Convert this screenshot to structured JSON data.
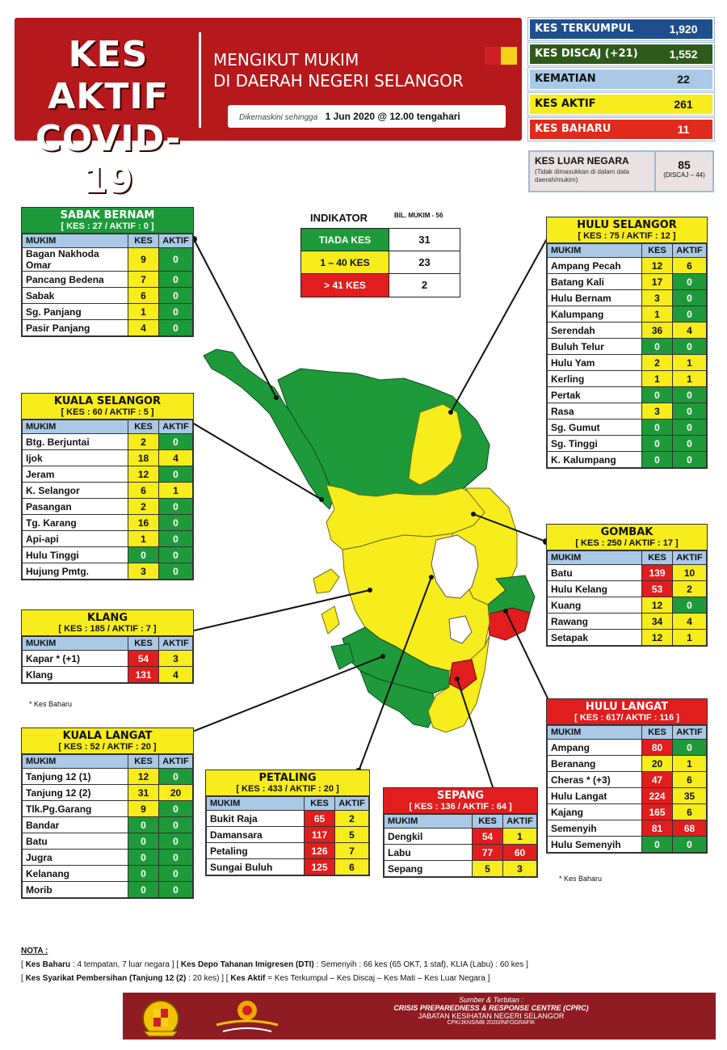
{
  "header": {
    "title_line1": "KES AKTIF",
    "title_line2": "COVID-19",
    "subtitle_line1": "MENGIKUT MUKIM",
    "subtitle_line2": "DI DAERAH NEGERI SELANGOR",
    "update_prefix": "Dikemaskini sehingga",
    "update_value": "1 Jun 2020 @ 12.00 tengahari"
  },
  "summary": [
    {
      "label": "KES TERKUMPUL",
      "value": "1,920",
      "color": "#1f4e8c"
    },
    {
      "label": "KES DISCAJ  (+21)",
      "value": "1,552",
      "color": "#2e5a1c"
    },
    {
      "label": "KEMATIAN",
      "value": "22",
      "color": "#a9c9e6"
    },
    {
      "label": "KES AKTIF",
      "value": "261",
      "color": "#f7ec1c"
    },
    {
      "label": "KES BAHARU",
      "value": "11",
      "color": "#e02a1c"
    }
  ],
  "luar": {
    "label": "KES LUAR NEGARA",
    "note": "(Tidak dimasukkan di dalam data daerah/mukim)",
    "value": "85",
    "discaj": "(DISCAJ – 44)"
  },
  "indicator": {
    "title": "INDIKATOR",
    "bil": "BIL. MUKIM - 56",
    "rows": [
      {
        "label": "TIADA KES",
        "value": "31",
        "color": "#1e9a3a"
      },
      {
        "label": "1 – 40 KES",
        "value": "23",
        "color": "#f7ec1c"
      },
      {
        "label": "> 41 KES",
        "value": "2",
        "color": "#e11d1d"
      }
    ]
  },
  "columns": {
    "mukim": "MUKIM",
    "kes": "KES",
    "aktif": "AKTIF"
  },
  "districts": {
    "sabak_bernam": {
      "name": "SABAK BERNAM",
      "sub": "[ KES : 27 / AKTIF : 0 ]",
      "rows": [
        {
          "mukim": "Bagan Nakhoda Omar",
          "kes": "9",
          "aktif": "0"
        },
        {
          "mukim": "Pancang Bedena",
          "kes": "7",
          "aktif": "0"
        },
        {
          "mukim": "Sabak",
          "kes": "6",
          "aktif": "0"
        },
        {
          "mukim": "Sg. Panjang",
          "kes": "1",
          "aktif": "0"
        },
        {
          "mukim": "Pasir Panjang",
          "kes": "4",
          "aktif": "0"
        }
      ]
    },
    "kuala_selangor": {
      "name": "KUALA SELANGOR",
      "sub": "[ KES : 60 / AKTIF : 5 ]",
      "rows": [
        {
          "mukim": "Btg. Berjuntai",
          "kes": "2",
          "aktif": "0"
        },
        {
          "mukim": "Ijok",
          "kes": "18",
          "aktif": "4"
        },
        {
          "mukim": "Jeram",
          "kes": "12",
          "aktif": "0"
        },
        {
          "mukim": "K. Selangor",
          "kes": "6",
          "aktif": "1"
        },
        {
          "mukim": "Pasangan",
          "kes": "2",
          "aktif": "0"
        },
        {
          "mukim": "Tg. Karang",
          "kes": "16",
          "aktif": "0"
        },
        {
          "mukim": "Api-api",
          "kes": "1",
          "aktif": "0"
        },
        {
          "mukim": "Hulu Tinggi",
          "kes": "0",
          "aktif": "0"
        },
        {
          "mukim": "Hujung Pmtg.",
          "kes": "3",
          "aktif": "0"
        }
      ]
    },
    "klang": {
      "name": "KLANG",
      "sub": "[ KES : 185 / AKTIF : 7 ]",
      "rows": [
        {
          "mukim": "Kapar * (+1)",
          "kes": "54",
          "aktif": "3"
        },
        {
          "mukim": "Klang",
          "kes": "131",
          "aktif": "4"
        }
      ],
      "note": "* Kes Baharu"
    },
    "kuala_langat": {
      "name": "KUALA LANGAT",
      "sub": "[ KES : 52 / AKTIF : 20 ]",
      "rows": [
        {
          "mukim": "Tanjung 12 (1)",
          "kes": "12",
          "aktif": "0"
        },
        {
          "mukim": "Tanjung 12 (2)",
          "kes": "31",
          "aktif": "20"
        },
        {
          "mukim": "Tlk.Pg.Garang",
          "kes": "9",
          "aktif": "0"
        },
        {
          "mukim": "Bandar",
          "kes": "0",
          "aktif": "0"
        },
        {
          "mukim": "Batu",
          "kes": "0",
          "aktif": "0"
        },
        {
          "mukim": "Jugra",
          "kes": "0",
          "aktif": "0"
        },
        {
          "mukim": "Kelanang",
          "kes": "0",
          "aktif": "0"
        },
        {
          "mukim": "Morib",
          "kes": "0",
          "aktif": "0"
        }
      ]
    },
    "petaling": {
      "name": "PETALING",
      "sub": "[ KES : 433 / AKTIF : 20 ]",
      "rows": [
        {
          "mukim": "Bukit Raja",
          "kes": "65",
          "aktif": "2"
        },
        {
          "mukim": "Damansara",
          "kes": "117",
          "aktif": "5"
        },
        {
          "mukim": "Petaling",
          "kes": "126",
          "aktif": "7"
        },
        {
          "mukim": "Sungai Buluh",
          "kes": "125",
          "aktif": "6"
        }
      ]
    },
    "sepang": {
      "name": "SEPANG",
      "sub": "[ KES : 136 / AKTIF : 64 ]",
      "rows": [
        {
          "mukim": "Dengkil",
          "kes": "54",
          "aktif": "1"
        },
        {
          "mukim": "Labu",
          "kes": "77",
          "aktif": "60"
        },
        {
          "mukim": "Sepang",
          "kes": "5",
          "aktif": "3"
        }
      ]
    },
    "hulu_selangor": {
      "name": "HULU SELANGOR",
      "sub": "[ KES : 75 / AKTIF : 12 ]",
      "rows": [
        {
          "mukim": "Ampang Pecah",
          "kes": "12",
          "aktif": "6"
        },
        {
          "mukim": "Batang Kali",
          "kes": "17",
          "aktif": "0"
        },
        {
          "mukim": "Hulu Bernam",
          "kes": "3",
          "aktif": "0"
        },
        {
          "mukim": "Kalumpang",
          "kes": "1",
          "aktif": "0"
        },
        {
          "mukim": "Serendah",
          "kes": "36",
          "aktif": "4"
        },
        {
          "mukim": "Buluh Telur",
          "kes": "0",
          "aktif": "0"
        },
        {
          "mukim": "Hulu Yam",
          "kes": "2",
          "aktif": "1"
        },
        {
          "mukim": "Kerling",
          "kes": "1",
          "aktif": "1"
        },
        {
          "mukim": "Pertak",
          "kes": "0",
          "aktif": "0"
        },
        {
          "mukim": "Rasa",
          "kes": "3",
          "aktif": "0"
        },
        {
          "mukim": "Sg. Gumut",
          "kes": "0",
          "aktif": "0"
        },
        {
          "mukim": "Sg. Tinggi",
          "kes": "0",
          "aktif": "0"
        },
        {
          "mukim": "K. Kalumpang",
          "kes": "0",
          "aktif": "0"
        }
      ]
    },
    "gombak": {
      "name": "GOMBAK",
      "sub": "[ KES : 250 / AKTIF : 17 ]",
      "rows": [
        {
          "mukim": "Batu",
          "kes": "139",
          "aktif": "10"
        },
        {
          "mukim": "Hulu Kelang",
          "kes": "53",
          "aktif": "2"
        },
        {
          "mukim": "Kuang",
          "kes": "12",
          "aktif": "0"
        },
        {
          "mukim": "Rawang",
          "kes": "34",
          "aktif": "4"
        },
        {
          "mukim": "Setapak",
          "kes": "12",
          "aktif": "1"
        }
      ]
    },
    "hulu_langat": {
      "name": "HULU LANGAT",
      "sub": "[ KES : 617/ AKTIF : 116 ]",
      "rows": [
        {
          "mukim": "Ampang",
          "kes": "80",
          "aktif": "0"
        },
        {
          "mukim": "Beranang",
          "kes": "20",
          "aktif": "1"
        },
        {
          "mukim": "Cheras * (+3)",
          "kes": "47",
          "aktif": "6"
        },
        {
          "mukim": "Hulu Langat",
          "kes": "224",
          "aktif": "35"
        },
        {
          "mukim": "Kajang",
          "kes": "165",
          "aktif": "6"
        },
        {
          "mukim": "Semenyih",
          "kes": "81",
          "aktif": "68"
        },
        {
          "mukim": "Hulu Semenyih",
          "kes": "0",
          "aktif": "0"
        }
      ],
      "note": "* Kes Baharu"
    }
  },
  "nota": {
    "title": "NOTA :",
    "line1_a": "[ ",
    "line1_b": "Kes Baharu",
    "line1_c": " :  4 tempatan, 7 luar negara ]  [ ",
    "line1_d": "Kes Depo Tahanan Imigresen (DTI)",
    "line1_e": " : Semenyih : 66 kes (65 OKT, 1 staf),  KLIA (Labu) : 60 kes ]",
    "line2_a": "[ ",
    "line2_b": "Kes Syarikat Pembersihan (Tanjung 12 (2)",
    "line2_c": " : 20 kes) ]  [ ",
    "line2_d": "Kes Aktif",
    "line2_e": " = Kes Terkumpul – Kes Discaj – Kes Mati – Kes Luar Negara ]"
  },
  "footer": {
    "sumber": "Sumber & Terbitan :",
    "cprc": "CRISIS PREPAREDNESS & RESPONSE CENTRE (CPRC)",
    "jkn": "JABATAN KESIHATAN NEGERI SELANGOR",
    "ref": "CPK/JKNS/MB 2020/INFOGRAFIK"
  },
  "colors": {
    "green": "#1e9a3a",
    "yellow": "#f7ec1c",
    "red": "#e11d1d",
    "header_red": "#b5191c",
    "footer_red": "#8e1c22",
    "table_head_blue": "#a9c9e6"
  }
}
